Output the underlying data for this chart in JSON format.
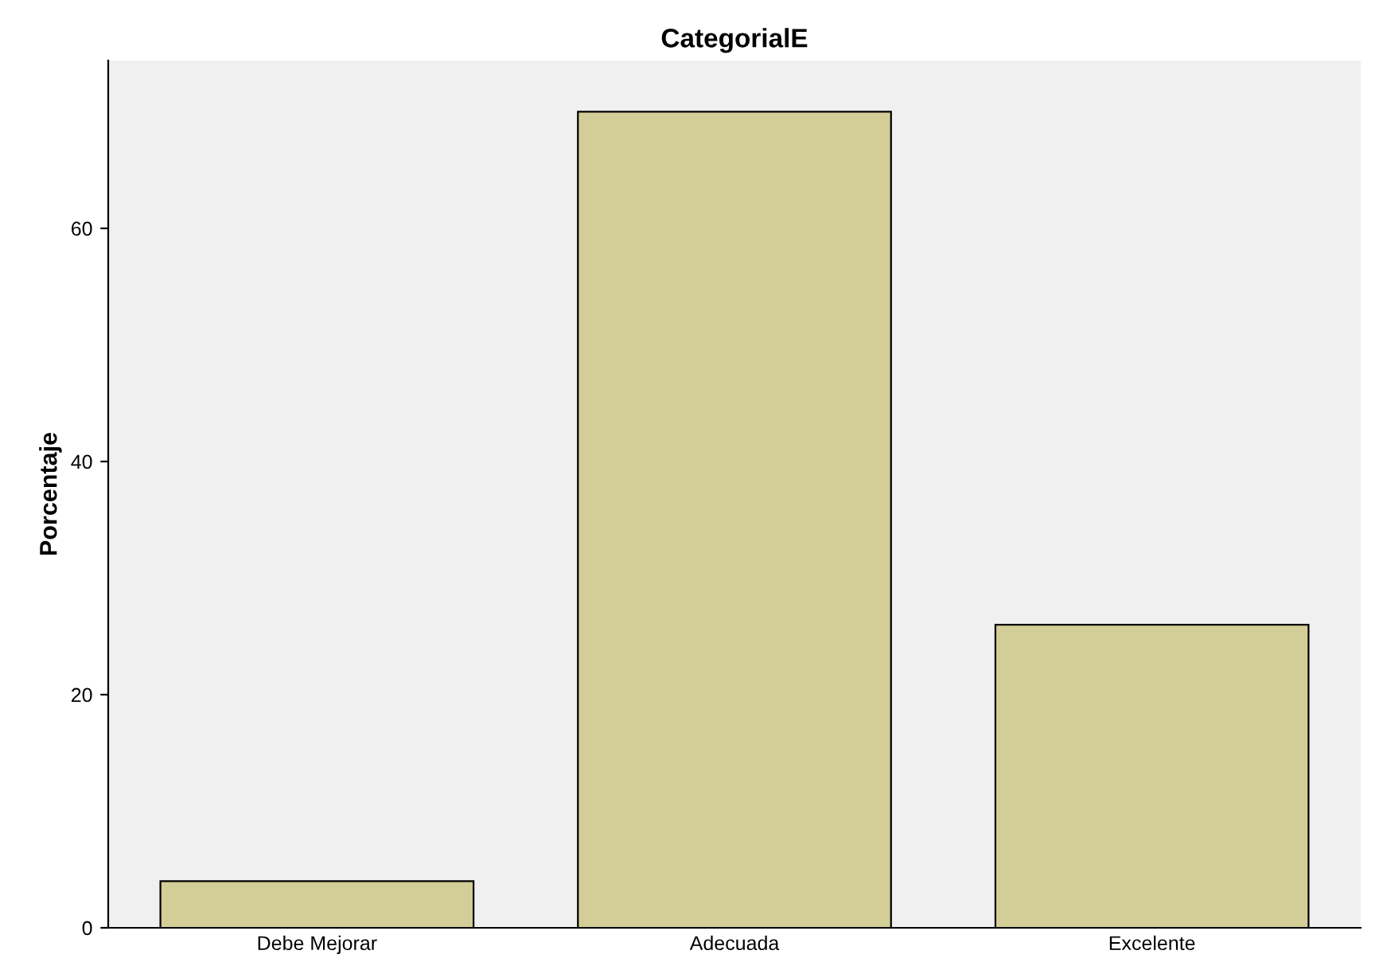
{
  "chart_data": {
    "type": "bar",
    "title": "CategorialE",
    "ylabel": "Porcentaje",
    "categories": [
      "Debe Mejorar",
      "Adecuada",
      "Excelente"
    ],
    "values": [
      4,
      70,
      26
    ],
    "color": "#d3ce97",
    "ylim": [
      0,
      74.4
    ],
    "yticks": [
      0,
      20,
      40,
      60
    ],
    "grid": false
  }
}
